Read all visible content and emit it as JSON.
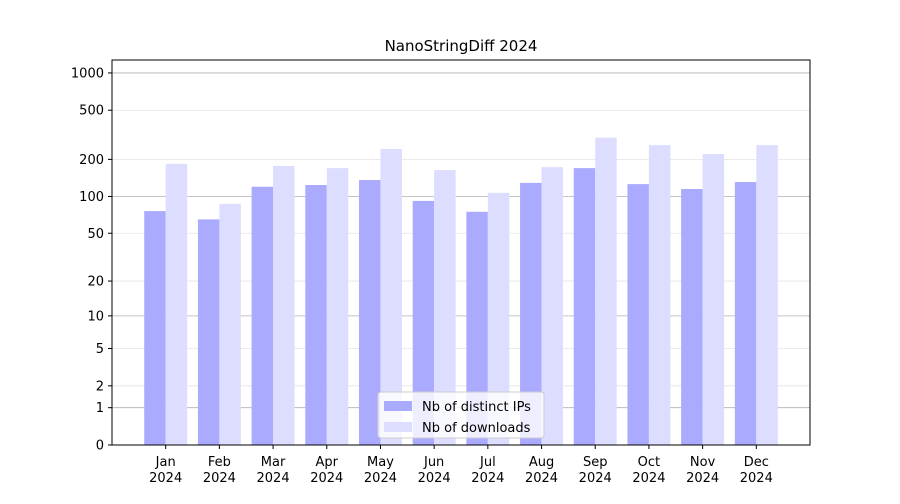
{
  "chart_data": {
    "type": "bar",
    "title": "NanoStringDiff 2024",
    "categories": [
      "Jan 2024",
      "Feb 2024",
      "Mar 2024",
      "Apr 2024",
      "May 2024",
      "Jun 2024",
      "Jul 2024",
      "Aug 2024",
      "Sep 2024",
      "Oct 2024",
      "Nov 2024",
      "Dec 2024"
    ],
    "series": [
      {
        "name": "Nb of distinct IPs",
        "color": "#aaaaff",
        "values": [
          76,
          65,
          120,
          124,
          136,
          92,
          75,
          129,
          170,
          126,
          115,
          131
        ]
      },
      {
        "name": "Nb of downloads",
        "color": "#ddddff",
        "values": [
          184,
          87,
          177,
          170,
          243,
          164,
          107,
          173,
          300,
          261,
          221,
          261
        ]
      }
    ],
    "yscale": "log1p",
    "ylim": [
      0,
      1272
    ],
    "yticks": [
      0,
      1,
      2,
      5,
      10,
      20,
      50,
      100,
      200,
      500,
      1000
    ],
    "grid": true,
    "legend": "lower center"
  }
}
